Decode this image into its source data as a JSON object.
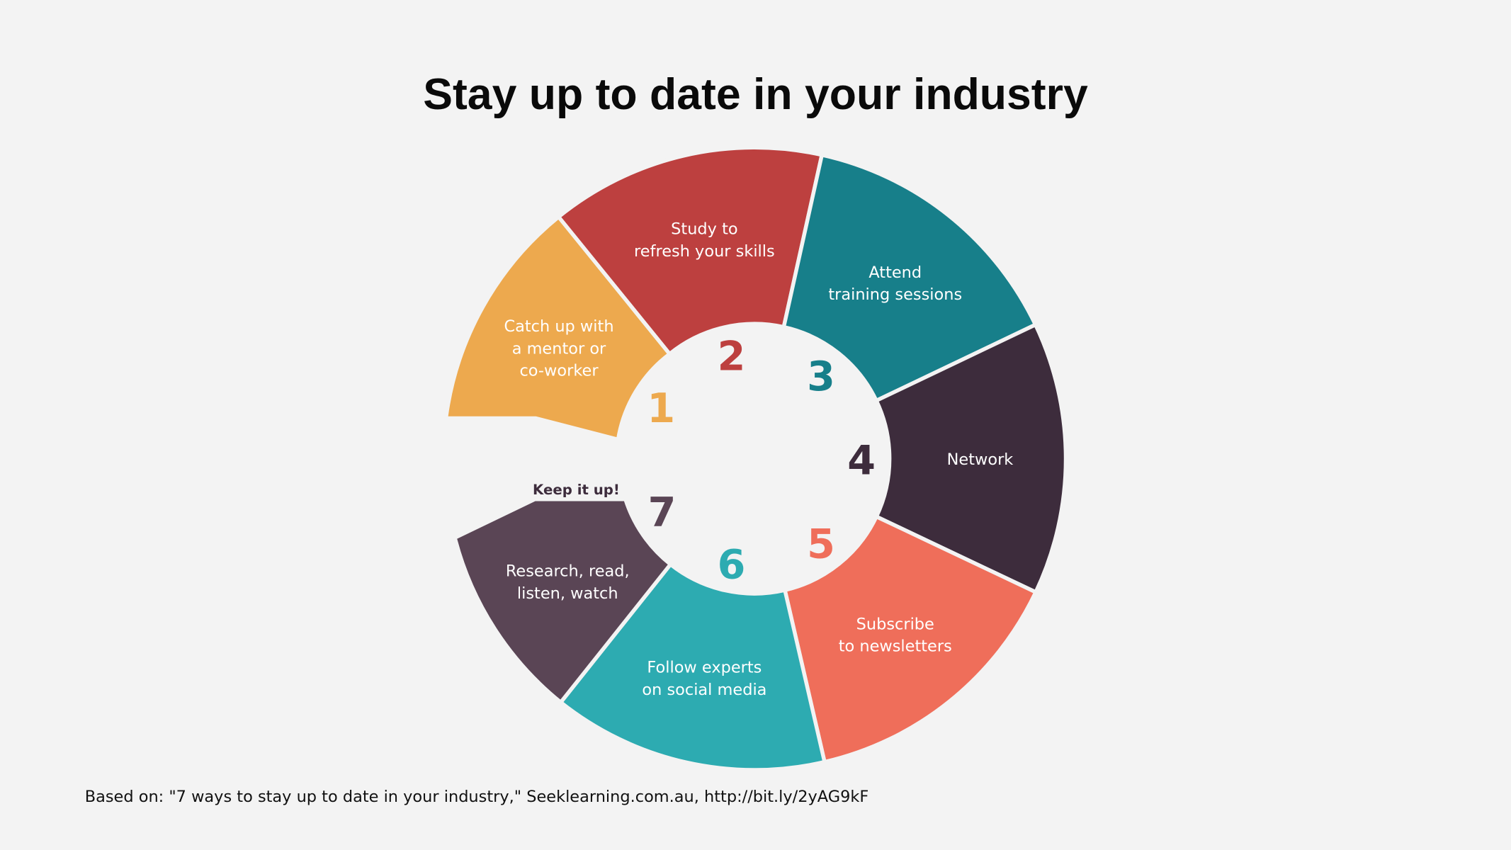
{
  "title": "Stay up to date in your industry",
  "footer": "Based on: \"7 ways to stay up to date in your industry,\" Seeklearning.com.au, http://bit.ly/2yAG9kF",
  "callout": "Keep it up!",
  "segments": [
    {
      "number": "1",
      "color": "#EDA94E",
      "lines": [
        "Catch up with",
        "a mentor or",
        "co-worker"
      ]
    },
    {
      "number": "2",
      "color": "#BD403F",
      "lines": [
        "Study to",
        "refresh your skills"
      ]
    },
    {
      "number": "3",
      "color": "#177F8A",
      "lines": [
        "Attend",
        "training sessions"
      ]
    },
    {
      "number": "4",
      "color": "#3D2C3C",
      "lines": [
        "Network"
      ]
    },
    {
      "number": "5",
      "color": "#EF6E5A",
      "lines": [
        "Subscribe",
        "to newsletters"
      ]
    },
    {
      "number": "6",
      "color": "#2DABB1",
      "lines": [
        "Follow experts",
        "on social media"
      ]
    },
    {
      "number": "7",
      "color": "#5A4555",
      "lines": [
        "Research, read,",
        "listen, watch"
      ]
    }
  ]
}
